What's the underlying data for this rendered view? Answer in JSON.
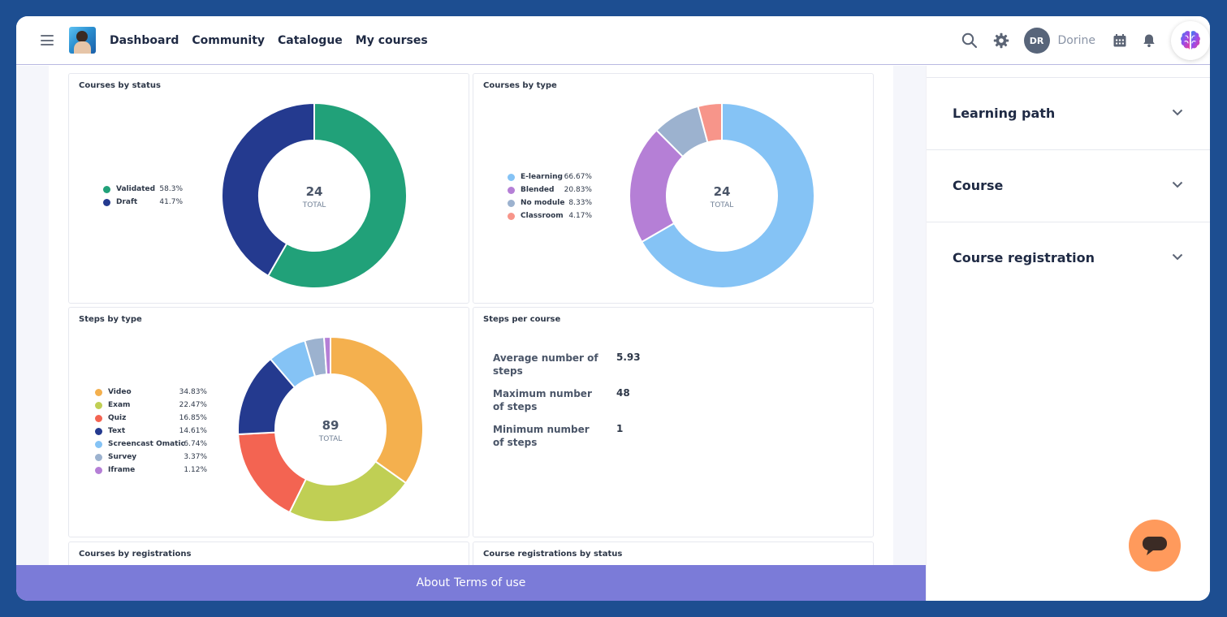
{
  "nav": {
    "links": [
      "Dashboard",
      "Community",
      "Catalogue",
      "My courses"
    ]
  },
  "user": {
    "initials": "DR",
    "name": "Dorine"
  },
  "icons": {
    "menu": "hamburger-icon",
    "search": "search-icon",
    "settings": "gear-icon",
    "calendar": "calendar-icon",
    "notifications": "bell-icon",
    "brain": "brain-icon",
    "chat": "chat-icon",
    "chevron": "chevron-down-icon"
  },
  "colors": {
    "footer": "#7b7bd8",
    "chat_button": "#ff9a5c",
    "background": "#1d4e91"
  },
  "cards": {
    "courses_by_status": {
      "title": "Courses by status",
      "total": "24",
      "total_label": "TOTAL"
    },
    "courses_by_type": {
      "title": "Courses by type",
      "total": "24",
      "total_label": "TOTAL"
    },
    "steps_by_type": {
      "title": "Steps by type",
      "total": "89",
      "total_label": "TOTAL"
    },
    "steps_per_course": {
      "title": "Steps per course",
      "stats": [
        {
          "label": "Average number of steps",
          "value": "5.93"
        },
        {
          "label": "Maximum number of steps",
          "value": "48"
        },
        {
          "label": "Minimum number of steps",
          "value": "1"
        }
      ]
    },
    "courses_by_registrations": {
      "title": "Courses by registrations"
    },
    "course_registrations_by_status": {
      "title": "Course registrations by status"
    }
  },
  "chart_data": [
    {
      "type": "pie",
      "title": "Courses by status",
      "categories": [
        "Validated",
        "Draft"
      ],
      "values": [
        58.3,
        41.7
      ],
      "labels": [
        "58.3%",
        "41.7%"
      ],
      "colors": [
        "#21a179",
        "#243a8f"
      ]
    },
    {
      "type": "pie",
      "title": "Courses by type",
      "categories": [
        "E-learning",
        "Blended",
        "No module",
        "Classroom"
      ],
      "values": [
        66.67,
        20.83,
        8.33,
        4.17
      ],
      "labels": [
        "66.67%",
        "20.83%",
        "8.33%",
        "4.17%"
      ],
      "colors": [
        "#85c3f5",
        "#b57fd6",
        "#9cb2cf",
        "#f7958a"
      ]
    },
    {
      "type": "pie",
      "title": "Steps by type",
      "categories": [
        "Video",
        "Exam",
        "Quiz",
        "Text",
        "Screencast Omatic",
        "Survey",
        "Iframe"
      ],
      "values": [
        34.83,
        22.47,
        16.85,
        14.61,
        6.74,
        3.37,
        1.12
      ],
      "labels": [
        "34.83%",
        "22.47%",
        "16.85%",
        "14.61%",
        "6.74%",
        "3.37%",
        "1.12%"
      ],
      "colors": [
        "#f4b04e",
        "#c0cf54",
        "#f36452",
        "#243a8f",
        "#85c3f5",
        "#9cb2cf",
        "#b57fd6"
      ]
    }
  ],
  "footer": {
    "about": "About",
    "terms": "Terms of use"
  },
  "panel": {
    "items": [
      "Learning path",
      "Course",
      "Course registration"
    ]
  }
}
